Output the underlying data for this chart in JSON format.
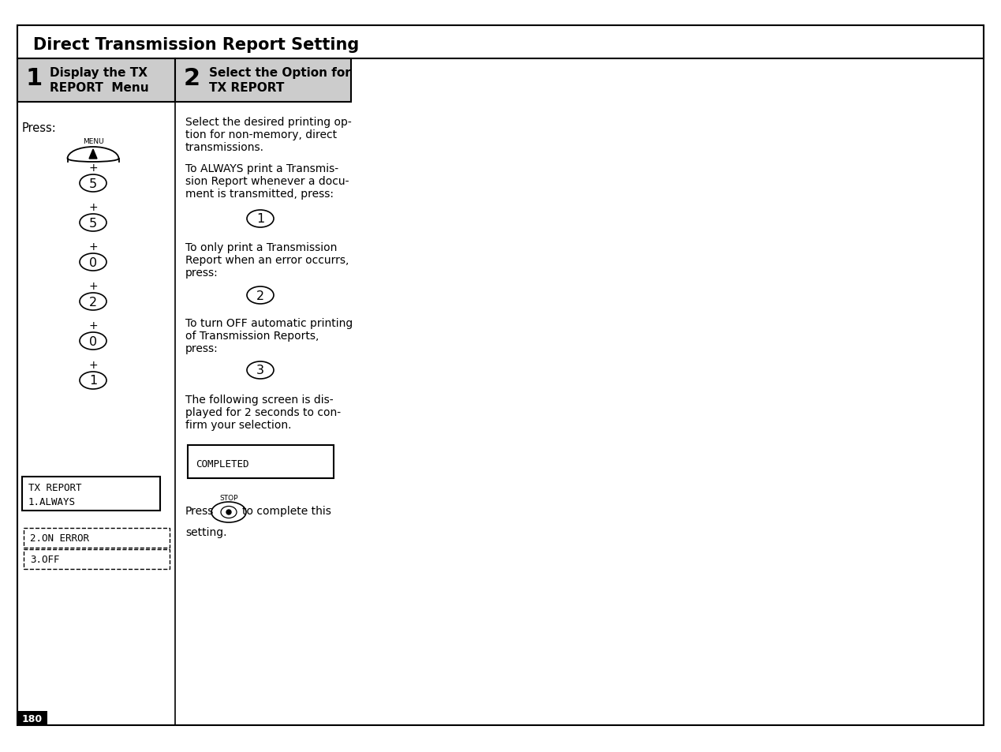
{
  "title": "Direct Transmission Report Setting",
  "step1_num": "1",
  "step2_num": "2",
  "step1_line1": "Display the TX",
  "step1_line2": "REPORT  Menu",
  "step2_line1": "Select the Option for",
  "step2_line2": "TX REPORT",
  "press_label": "Press:",
  "menu_label": "MENU",
  "key_sequence": [
    "5",
    "5",
    "0",
    "2",
    "0",
    "1"
  ],
  "lcd_line1": "TX REPORT",
  "lcd_line2": "1.ALWAYS",
  "dashed1": "2.ON ERROR",
  "dashed2": "3.OFF",
  "p1_l1": "Select the desired printing op-",
  "p1_l2": "tion for non-memory, direct",
  "p1_l3": "transmissions.",
  "p2_l1": "To ALWAYS print a Transmis-",
  "p2_l2": "sion Report whenever a docu-",
  "p2_l3": "ment is transmitted, press:",
  "btn1": "1",
  "p3_l1": "To only print a Transmission",
  "p3_l2": "Report when an error occurrs,",
  "p3_l3": "press:",
  "btn2": "2",
  "p4_l1": "To turn OFF automatic printing",
  "p4_l2": "of Transmission Reports,",
  "p4_l3": "press:",
  "btn3": "3",
  "p5_l1": "The following screen is dis-",
  "p5_l2": "played for 2 seconds to con-",
  "p5_l3": "firm your selection.",
  "completed_text": "COMPLETED",
  "stop_label": "STOP",
  "press_line1": "Press",
  "press_line2": "to complete this",
  "setting_line": "setting.",
  "page_num": "180",
  "bg_color": "#ffffff",
  "text_color": "#000000",
  "border_color": "#000000"
}
